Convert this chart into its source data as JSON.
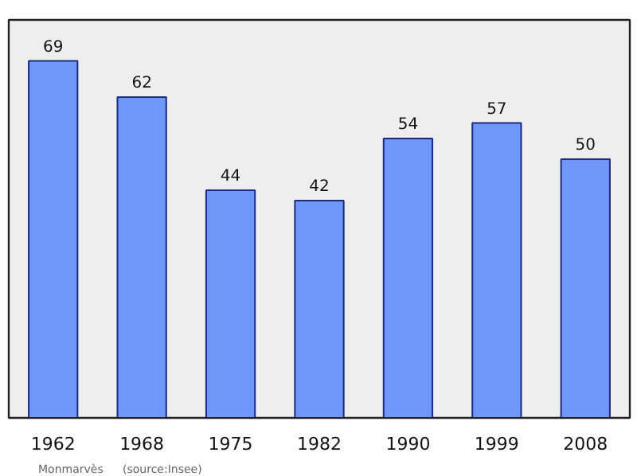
{
  "chart_data": {
    "type": "bar",
    "categories": [
      "1962",
      "1968",
      "1975",
      "1982",
      "1990",
      "1999",
      "2008"
    ],
    "values": [
      69,
      62,
      44,
      42,
      54,
      57,
      50
    ],
    "color": "#6f96f9",
    "relative": false,
    "data_labels": true,
    "grid": false,
    "annotations": [
      "Monmarvès",
      "(source:Insee)"
    ]
  }
}
